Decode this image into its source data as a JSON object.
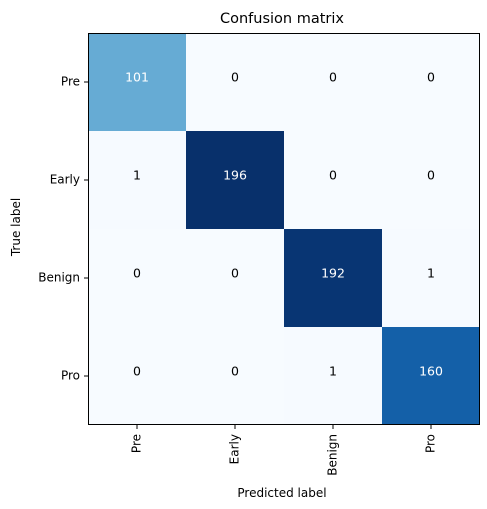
{
  "chart_data": {
    "type": "heatmap",
    "title": "Confusion matrix",
    "xlabel": "Predicted label",
    "ylabel": "True label",
    "x_categories": [
      "Pre",
      "Early",
      "Benign",
      "Pro"
    ],
    "y_categories": [
      "Pre",
      "Early",
      "Benign",
      "Pro"
    ],
    "values": [
      [
        101,
        0,
        0,
        0
      ],
      [
        1,
        196,
        0,
        0
      ],
      [
        0,
        0,
        192,
        1
      ],
      [
        0,
        0,
        1,
        160
      ]
    ],
    "colormap": "Blues",
    "value_range": [
      0,
      196
    ],
    "grid": false,
    "legend": "none",
    "text_color_light": "#ffffff",
    "text_color_dark": "#000000"
  }
}
